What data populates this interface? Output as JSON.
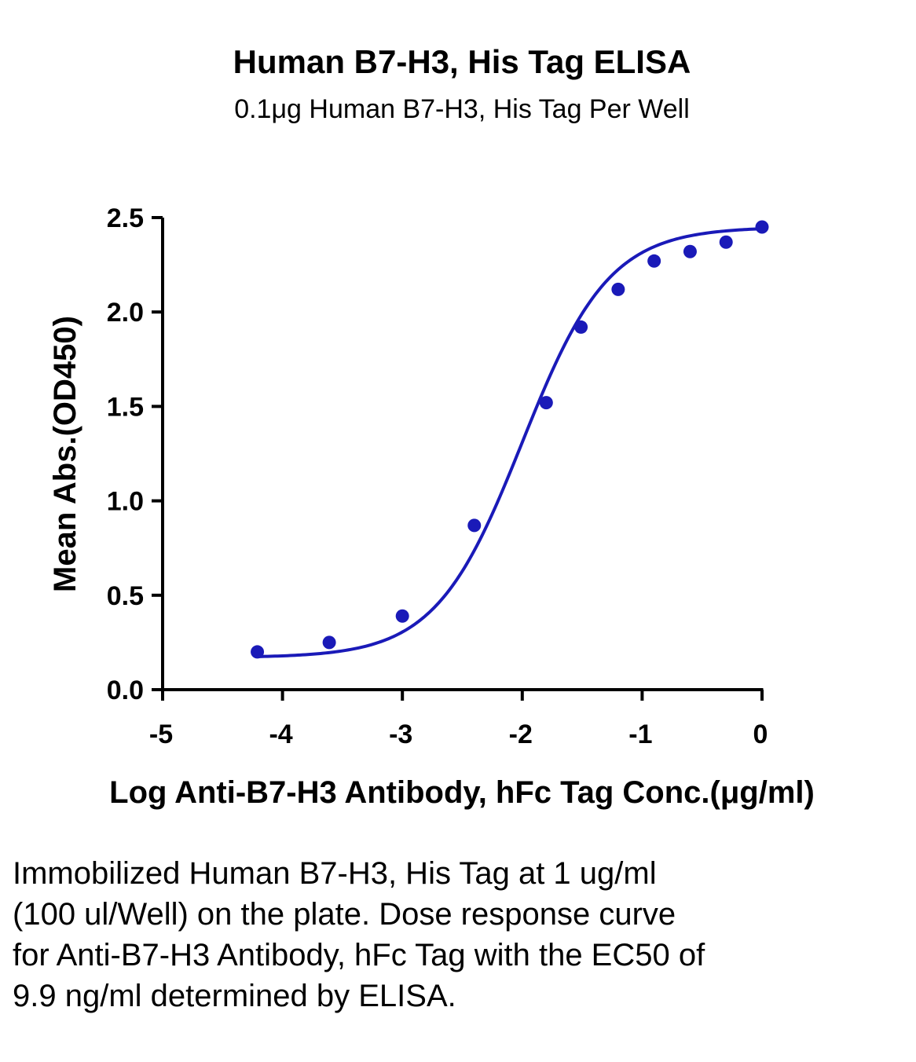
{
  "chart_data": {
    "type": "scatter",
    "title": "Human B7-H3, His Tag ELISA",
    "subtitle": "0.1μg Human B7-H3, His Tag Per Well",
    "xlabel": "Log Anti-B7-H3 Antibody, hFc Tag Conc.(μg/ml)",
    "ylabel": "Mean Abs.(OD450)",
    "xlim": [
      -5,
      0
    ],
    "ylim": [
      0,
      2.5
    ],
    "x_ticks": [
      -5,
      -4,
      -3,
      -2,
      -1,
      0
    ],
    "x_tick_labels": [
      "-5",
      "-4",
      "-3",
      "-2",
      "-1",
      "0"
    ],
    "y_ticks": [
      0,
      0.5,
      1.0,
      1.5,
      2.0,
      2.5
    ],
    "y_tick_labels": [
      "0.0",
      "0.5",
      "1.0",
      "1.5",
      "2.0",
      "2.5"
    ],
    "grid": false,
    "color": "#1a1ab8",
    "series": [
      {
        "points": [
          {
            "x": -4.21,
            "y": 0.2
          },
          {
            "x": -3.61,
            "y": 0.25
          },
          {
            "x": -3.0,
            "y": 0.39
          },
          {
            "x": -2.4,
            "y": 0.87
          },
          {
            "x": -1.8,
            "y": 1.52
          },
          {
            "x": -1.51,
            "y": 1.92
          },
          {
            "x": -1.2,
            "y": 2.12
          },
          {
            "x": -0.9,
            "y": 2.27
          },
          {
            "x": -0.6,
            "y": 2.32
          },
          {
            "x": -0.3,
            "y": 2.37
          },
          {
            "x": 0.0,
            "y": 2.45
          }
        ],
        "fit": {
          "type": "4PL",
          "bottom": 0.17,
          "top": 2.45,
          "logEC50": -2.0,
          "hill": 1.2
        }
      }
    ]
  },
  "caption": "Immobilized Human B7-H3, His Tag at 1 ug/ml (100 ul/Well) on the plate. Dose response curve for Anti-B7-H3 Antibody, hFc Tag with the EC50 of 9.9 ng/ml determined by ELISA."
}
